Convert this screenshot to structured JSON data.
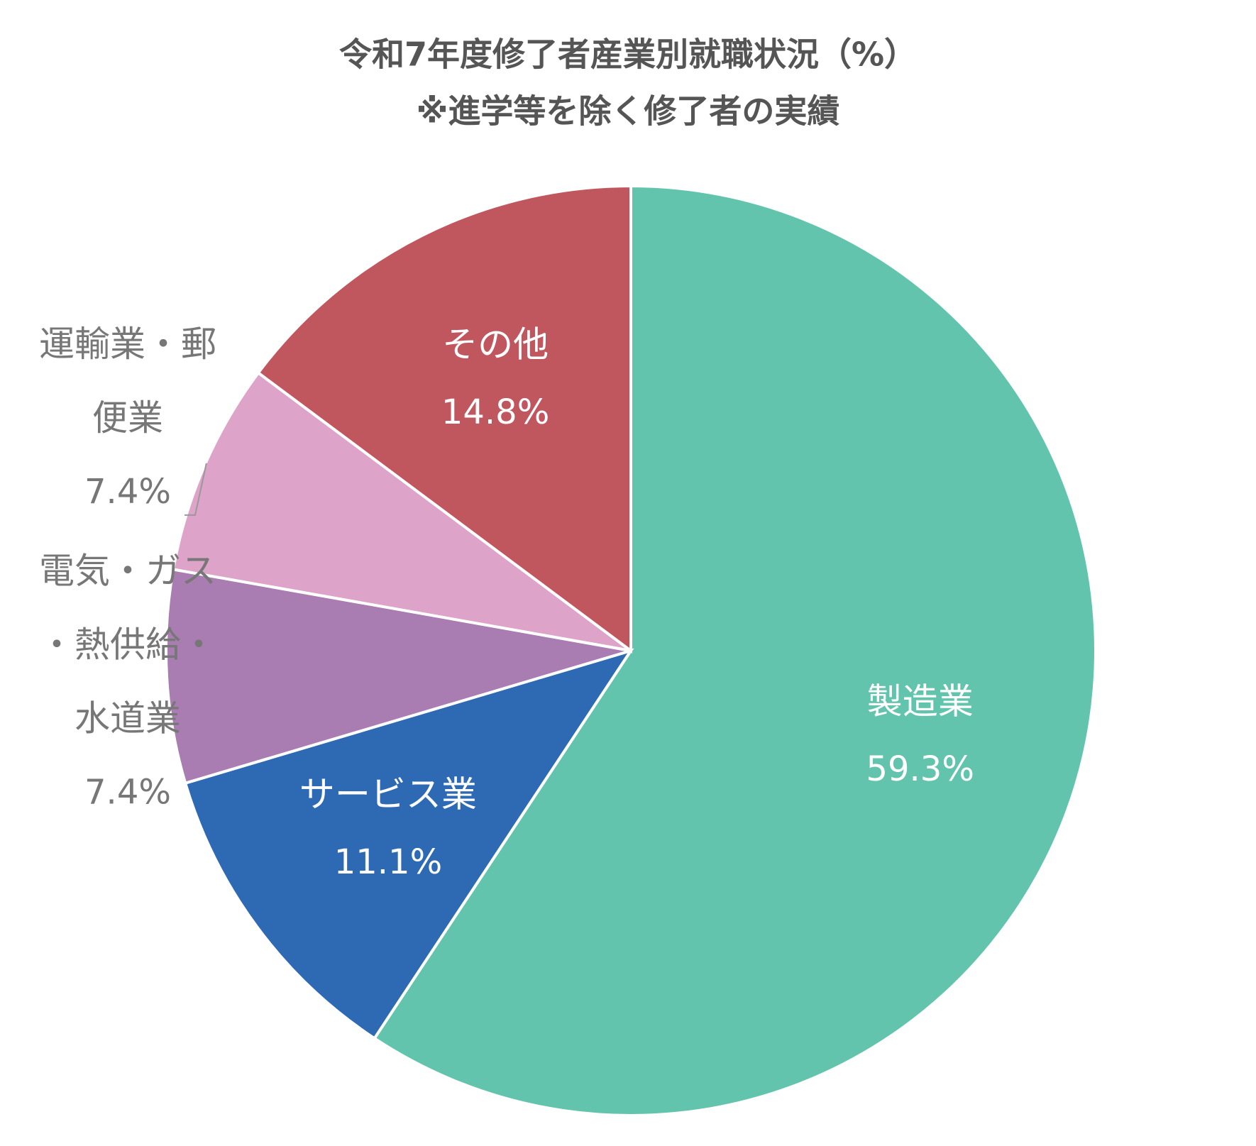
{
  "chart_data": {
    "type": "pie",
    "title": "令和7年度修了者産業別就職状況（%）",
    "subtitle": "※進学等を除く修了者の実績",
    "categories": [
      "製造業",
      "サービス業",
      "電気・ガス・熱供給・水道業",
      "運輸業・郵便業",
      "その他"
    ],
    "values": [
      59.3,
      11.1,
      7.4,
      7.4,
      14.8
    ],
    "value_labels": [
      "59.3%",
      "11.1%",
      "7.4%",
      "7.4%",
      "14.8%"
    ],
    "colors": [
      "#63c4ae",
      "#2e6ab3",
      "#a97db1",
      "#dda3c9",
      "#c0575f"
    ]
  }
}
